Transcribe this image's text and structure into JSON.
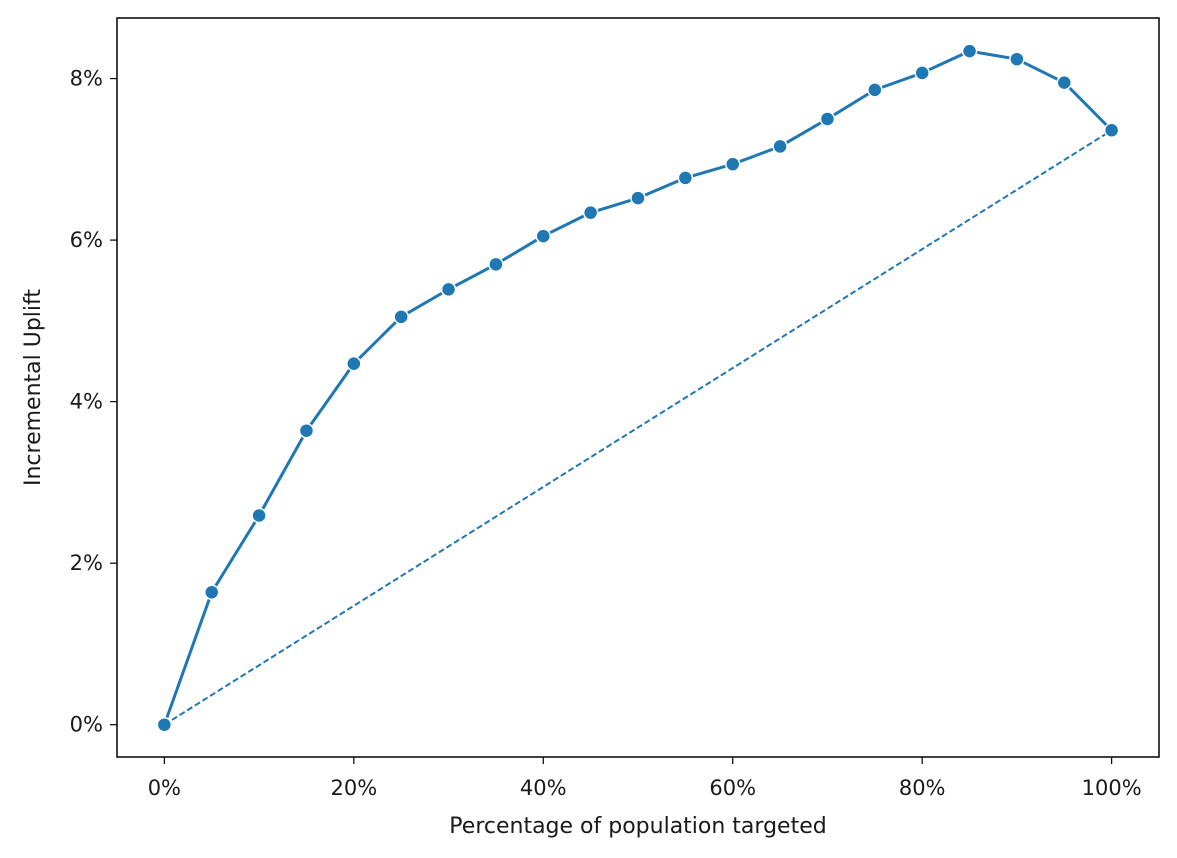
{
  "chart_data": {
    "type": "line",
    "title": "",
    "xlabel": "Percentage of population targeted",
    "ylabel": "Incremental Uplift",
    "x": [
      0,
      5,
      10,
      15,
      20,
      25,
      30,
      35,
      40,
      45,
      50,
      55,
      60,
      65,
      70,
      75,
      80,
      85,
      90,
      95,
      100
    ],
    "series": [
      {
        "values": [
          0,
          1.64,
          2.59,
          3.64,
          4.47,
          5.05,
          5.39,
          5.7,
          6.05,
          6.34,
          6.52,
          6.77,
          6.94,
          7.16,
          7.5,
          7.86,
          8.07,
          8.34,
          8.24,
          7.95,
          7.36
        ],
        "style": "solid",
        "marker": "circle",
        "color": "#1f77b4"
      },
      {
        "values": [
          0,
          7.36
        ],
        "x": [
          0,
          100
        ],
        "style": "dashed",
        "color": "#1f77b4"
      }
    ],
    "xlim": [
      -5,
      105
    ],
    "ylim": [
      -0.4,
      8.75
    ],
    "xticks": [
      0,
      20,
      40,
      60,
      80,
      100
    ],
    "xtick_labels": [
      "0%",
      "20%",
      "40%",
      "60%",
      "80%",
      "100%"
    ],
    "yticks": [
      0,
      2,
      4,
      6,
      8
    ],
    "ytick_labels": [
      "0%",
      "2%",
      "4%",
      "6%",
      "8%"
    ],
    "grid": false,
    "legend": false
  }
}
